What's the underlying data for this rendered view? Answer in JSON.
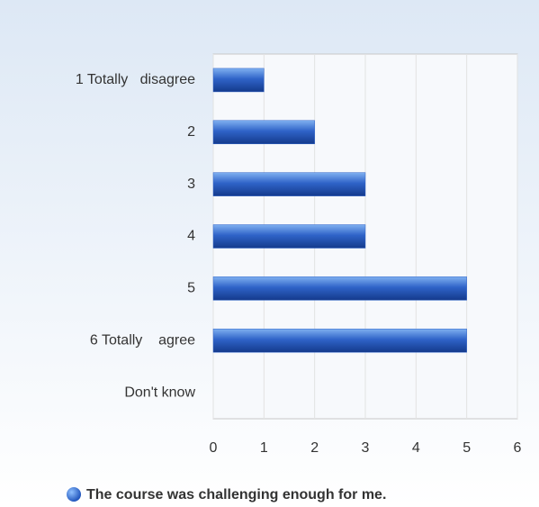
{
  "chart_data": {
    "type": "bar",
    "orientation": "horizontal",
    "categories": [
      "1 Totally   disagree",
      "2",
      "3",
      "4",
      "5",
      "6 Totally    agree",
      "Don't know"
    ],
    "series": [
      {
        "name": "The course was challenging enough for me.",
        "color": "#2f63c8",
        "values": [
          1,
          2,
          3,
          3,
          5,
          5,
          0
        ]
      }
    ],
    "xlim": [
      0,
      6
    ],
    "xticks": [
      0,
      1,
      2,
      3,
      4,
      5,
      6
    ],
    "grid": true,
    "legend": "bottom"
  }
}
